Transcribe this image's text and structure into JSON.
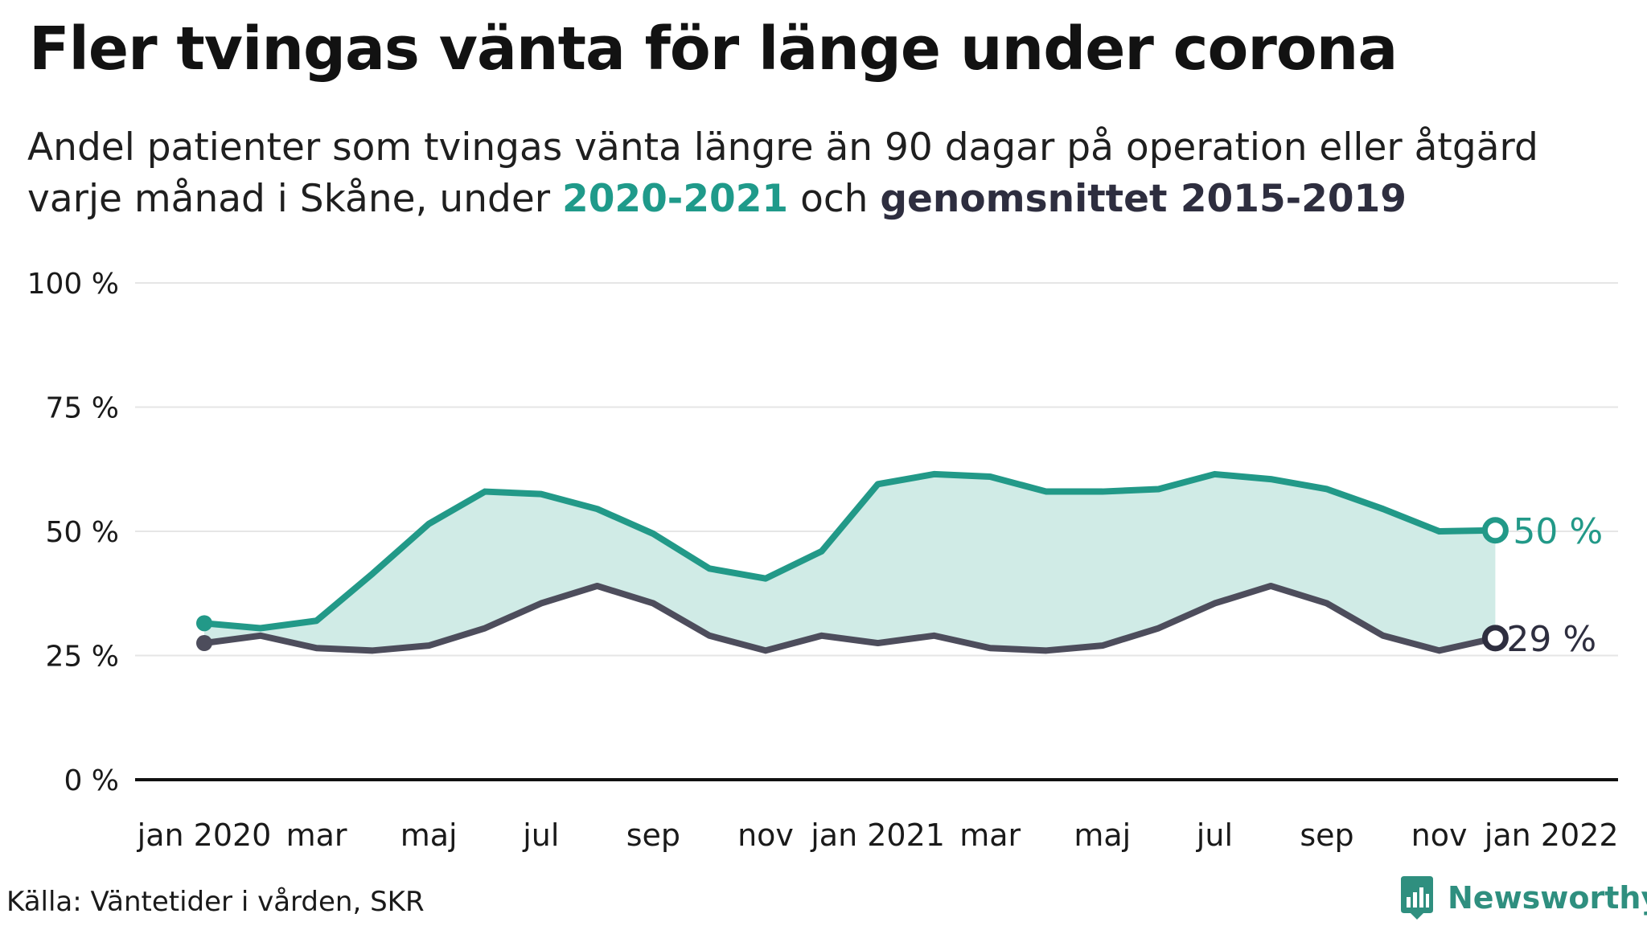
{
  "title": "Fler tvingas vänta för länge under corona",
  "subtitle": {
    "prefix": "Andel patienter som tvingas vänta längre än 90 dagar på operation eller åtgärd",
    "line2_start": "varje månad i Skåne, under ",
    "highlight_current": "2020-2021",
    "middle": " och ",
    "highlight_average": "genomsnittet 2015-2019"
  },
  "colors": {
    "current": "#229988",
    "average": "#4d4d5c",
    "area_fill": "#d0ebe6",
    "gridline": "#e6e6e6",
    "axis": "#111111",
    "brand": "#2f8f7f"
  },
  "chart_data": {
    "type": "line",
    "ylim": [
      0,
      100
    ],
    "y_ticks": [
      0,
      25,
      50,
      75,
      100
    ],
    "y_tick_labels": [
      "0 %",
      "25 %",
      "50 %",
      "75 %",
      "100 %"
    ],
    "x_ticks": [
      "2020-01",
      "2020-03",
      "2020-05",
      "2020-07",
      "2020-09",
      "2020-11",
      "2021-01",
      "2021-03",
      "2021-05",
      "2021-07",
      "2021-09",
      "2021-11",
      "2022-01"
    ],
    "x_tick_labels": [
      "jan 2020",
      "mar",
      "maj",
      "jul",
      "sep",
      "nov",
      "jan 2021",
      "mar",
      "maj",
      "jul",
      "sep",
      "nov",
      "jan 2022"
    ],
    "x_range": [
      "2019-12",
      "2022-02"
    ],
    "x": [
      "2020-01",
      "2020-02",
      "2020-03",
      "2020-04",
      "2020-05",
      "2020-06",
      "2020-07",
      "2020-08",
      "2020-09",
      "2020-10",
      "2020-11",
      "2020-12",
      "2021-01",
      "2021-02",
      "2021-03",
      "2021-04",
      "2021-05",
      "2021-06",
      "2021-07",
      "2021-08",
      "2021-09",
      "2021-10",
      "2021-11",
      "2021-12"
    ],
    "series": [
      {
        "name": "2020-2021",
        "values": [
          31.5,
          30.5,
          32,
          41.5,
          51.5,
          58,
          57.5,
          54.5,
          49.5,
          42.5,
          40.5,
          46,
          59.5,
          61.5,
          61,
          58,
          58,
          58.5,
          61.5,
          60.5,
          58.5,
          54.5,
          50,
          50.2
        ],
        "end_label": "50 %"
      },
      {
        "name": "genomsnittet 2015-2019",
        "values": [
          27.5,
          29,
          26.5,
          26,
          27,
          30.5,
          35.5,
          39,
          35.5,
          29,
          26,
          29,
          27.5,
          29,
          26.5,
          26,
          27,
          30.5,
          35.5,
          39,
          35.5,
          29,
          26,
          28.5
        ],
        "end_label": "29 %"
      }
    ],
    "grid": true
  },
  "source": "Källa: Väntetider i vården, SKR",
  "brand": {
    "name": "Newsworthy",
    "icon": "newsworthy-logo-icon"
  }
}
